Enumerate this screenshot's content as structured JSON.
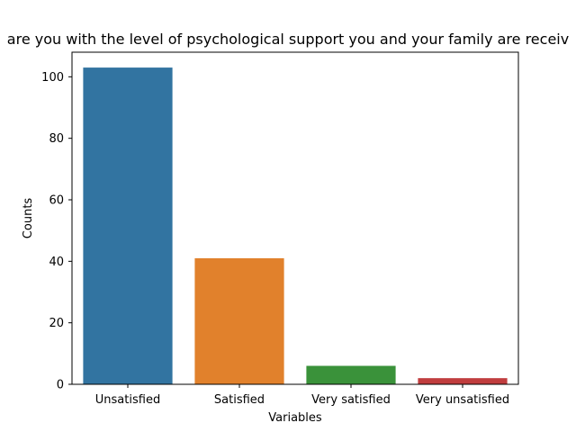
{
  "chart_data": {
    "type": "bar",
    "title": "are you with the level of psychological support you and your family are receiv",
    "xlabel": "Variables",
    "ylabel": "Counts",
    "categories": [
      "Unsatisfied",
      "Satisfied",
      "Very satisfied",
      "Very unsatisfied"
    ],
    "values": [
      103,
      41,
      6,
      2
    ],
    "colors": [
      "#3274a1",
      "#e1812c",
      "#3a923a",
      "#c03d3e"
    ],
    "ylim": [
      0,
      108
    ],
    "yticks": [
      0,
      20,
      40,
      60,
      80,
      100
    ],
    "grid": false,
    "legend": "none"
  }
}
